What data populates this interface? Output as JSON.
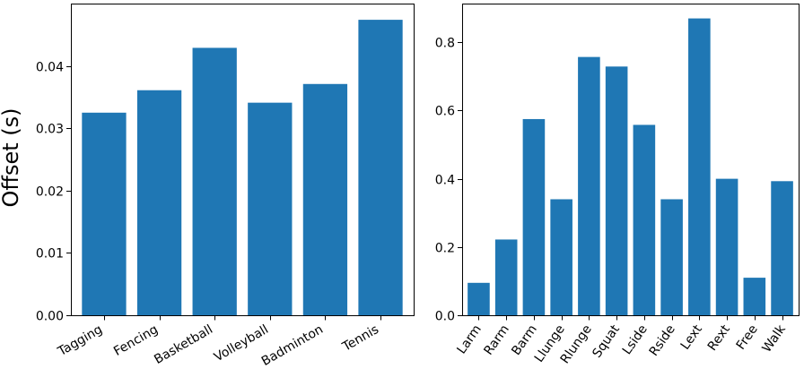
{
  "chart_data": [
    {
      "type": "bar",
      "title": "",
      "xlabel": "",
      "ylabel": "Offset (s)",
      "categories": [
        "Tagging",
        "Fencing",
        "Basketball",
        "Volleyball",
        "Badminton",
        "Tennis"
      ],
      "values": [
        0.0325,
        0.0361,
        0.0429,
        0.0341,
        0.0371,
        0.0474
      ],
      "ylim": [
        0,
        0.05
      ],
      "yticks": [
        0.0,
        0.01,
        0.02,
        0.03,
        0.04
      ],
      "ytick_labels": [
        "0.00",
        "0.01",
        "0.02",
        "0.03",
        "0.04"
      ],
      "color": "#1f77b4",
      "grid": false
    },
    {
      "type": "bar",
      "title": "",
      "xlabel": "",
      "ylabel": "",
      "categories": [
        "Larm",
        "Rarm",
        "Barm",
        "Llunge",
        "Rlunge",
        "Squat",
        "Lside",
        "Rside",
        "Lext",
        "Rext",
        "Free",
        "Walk"
      ],
      "values": [
        0.095,
        0.222,
        0.575,
        0.34,
        0.757,
        0.729,
        0.558,
        0.34,
        0.87,
        0.4,
        0.11,
        0.393
      ],
      "ylim": [
        0,
        0.9135
      ],
      "yticks": [
        0.0,
        0.2,
        0.4,
        0.6,
        0.8
      ],
      "ytick_labels": [
        "0.0",
        "0.2",
        "0.4",
        "0.6",
        "0.8"
      ],
      "color": "#1f77b4",
      "grid": false
    }
  ]
}
